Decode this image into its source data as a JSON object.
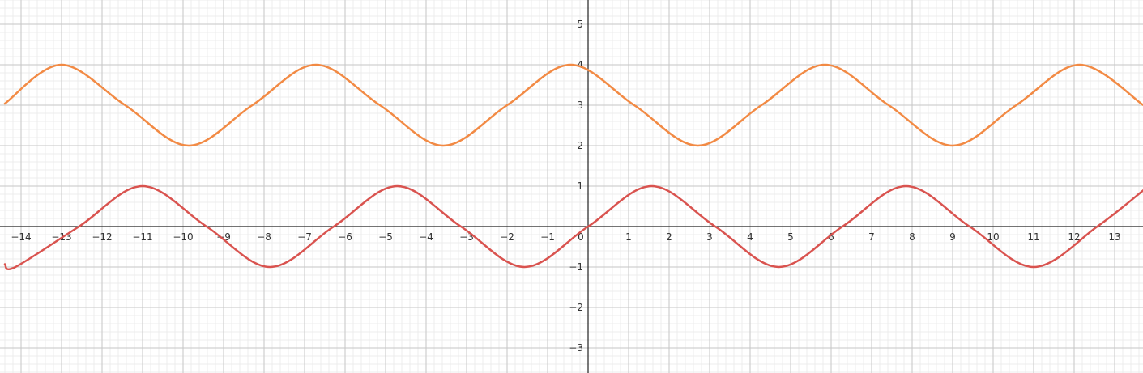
{
  "chart_data": {
    "type": "line",
    "title": "",
    "xlabel": "",
    "ylabel": "",
    "xlim": [
      -14.4,
      13.75
    ],
    "ylim": [
      -3.6,
      5.6
    ],
    "grid": true,
    "x_ticks": [
      "−14",
      "−13",
      "−12",
      "−11",
      "−10",
      "−9",
      "−8",
      "−7",
      "−6",
      "−5",
      "−4",
      "−3",
      "−2",
      "−1",
      "0",
      "1",
      "2",
      "3",
      "4",
      "5",
      "6",
      "7",
      "8",
      "9",
      "10",
      "11",
      "12",
      "13"
    ],
    "y_ticks": [
      "5",
      "4",
      "3",
      "2",
      "1",
      "−1",
      "−2",
      "−3"
    ],
    "series": [
      {
        "color": "#f28a44",
        "x": [
          -14.4,
          -13.0,
          -11.43,
          -9.86,
          -8.29,
          -6.72,
          -5.14,
          -3.57,
          -2.0,
          -0.43,
          1.14,
          2.71,
          4.28,
          5.85,
          7.42,
          9.0,
          10.57,
          12.14,
          13.71
        ],
        "values": [
          3.04,
          4.0,
          3.0,
          2.0,
          3.0,
          4.0,
          3.0,
          2.0,
          3.0,
          4.0,
          3.0,
          2.0,
          3.0,
          4.0,
          3.0,
          2.0,
          3.0,
          4.0,
          3.0
        ]
      },
      {
        "color": "#d9534f",
        "x": [
          -14.4,
          -14.14,
          -12.57,
          -11.0,
          -9.42,
          -7.85,
          -6.28,
          -4.71,
          -3.14,
          -1.57,
          0.0,
          1.57,
          3.14,
          4.71,
          6.28,
          7.85,
          9.42,
          11.0,
          12.57,
          13.75
        ],
        "values": [
          -0.93,
          -1.0,
          0.0,
          1.0,
          0.0,
          -1.0,
          0.0,
          1.0,
          0.0,
          -1.0,
          0.0,
          1.0,
          0.0,
          -1.0,
          0.0,
          1.0,
          0.0,
          -1.0,
          0.0,
          0.93
        ]
      }
    ]
  }
}
